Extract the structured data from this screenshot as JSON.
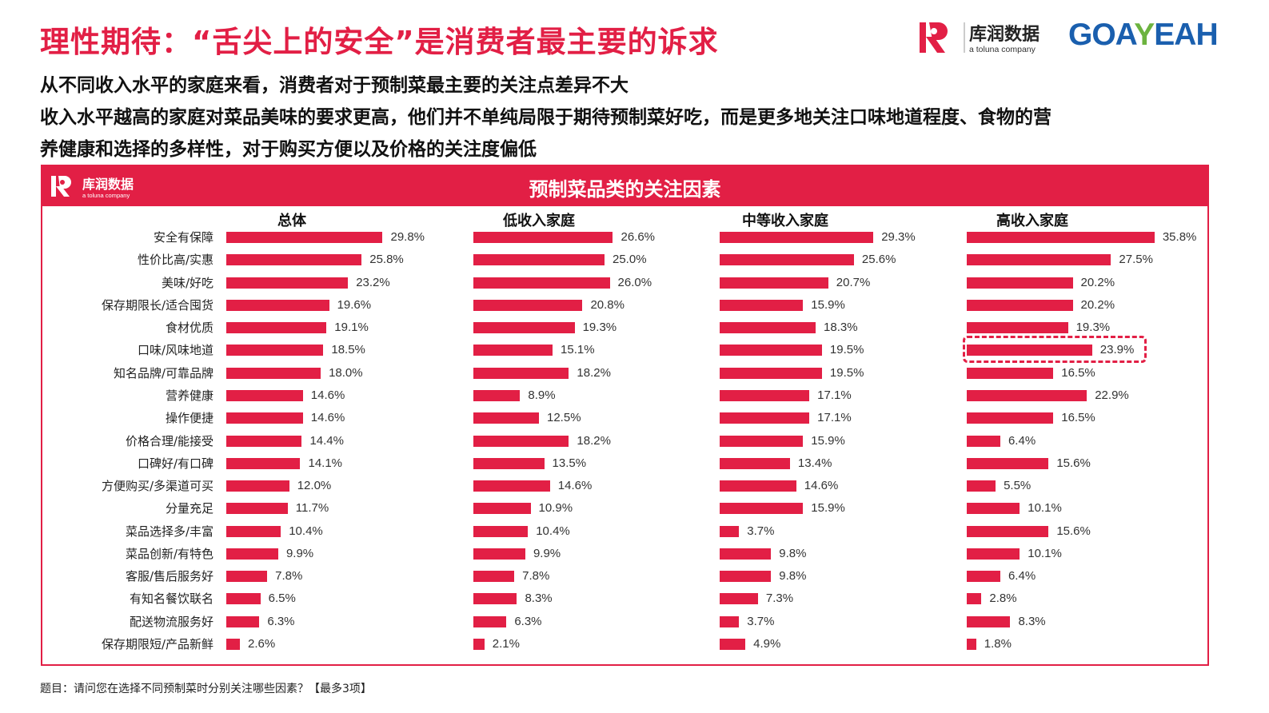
{
  "header": {
    "title": "理性期待：“舌尖上的安全”是消费者最主要的诉求",
    "subtitle_lines": [
      "从不同收入水平的家庭来看，消费者对于预制菜最主要的关注点差异不大",
      "收入水平越高的家庭对菜品美味的要求更高，他们并不单纯局限于期待预制菜好吃，而是更多地关注口味地道程度、食物的营",
      "养健康和选择的多样性，对于购买方便以及价格的关注度偏低"
    ],
    "logo_kurun": {
      "name": "库润数据",
      "tagline": "a toluna company"
    },
    "logo_goayeah": "GOAYEAH"
  },
  "colors": {
    "accent": "#e21f45",
    "text": "#111111"
  },
  "chart_data": {
    "type": "bar",
    "orientation": "horizontal",
    "title": "预制菜品类的关注因素",
    "unit": "%",
    "categories": [
      "安全有保障",
      "性价比高/实惠",
      "美味/好吃",
      "保存期限长/适合囤货",
      "食材优质",
      "口味/风味地道",
      "知名品牌/可靠品牌",
      "营养健康",
      "操作便捷",
      "价格合理/能接受",
      "口碑好/有口碑",
      "方便购买/多渠道可买",
      "分量充足",
      "菜品选择多/丰富",
      "菜品创新/有特色",
      "客服/售后服务好",
      "有知名餐饮联名",
      "配送物流服务好",
      "保存期限短/产品新鲜"
    ],
    "series": [
      {
        "name": "总体",
        "values": [
          29.8,
          25.8,
          23.2,
          19.6,
          19.1,
          18.5,
          18.0,
          14.6,
          14.6,
          14.4,
          14.1,
          12.0,
          11.7,
          10.4,
          9.9,
          7.8,
          6.5,
          6.3,
          2.6
        ]
      },
      {
        "name": "低收入家庭",
        "values": [
          26.6,
          25.0,
          26.0,
          20.8,
          19.3,
          15.1,
          18.2,
          8.9,
          12.5,
          18.2,
          13.5,
          14.6,
          10.9,
          10.4,
          9.9,
          7.8,
          8.3,
          6.3,
          2.1
        ]
      },
      {
        "name": "中等收入家庭",
        "values": [
          29.3,
          25.6,
          20.7,
          15.9,
          18.3,
          19.5,
          19.5,
          17.1,
          17.1,
          15.9,
          13.4,
          14.6,
          15.9,
          3.7,
          9.8,
          9.8,
          7.3,
          3.7,
          4.9
        ]
      },
      {
        "name": "高收入家庭",
        "values": [
          35.8,
          27.5,
          20.2,
          20.2,
          19.3,
          23.9,
          16.5,
          22.9,
          16.5,
          6.4,
          15.6,
          5.5,
          10.1,
          15.6,
          10.1,
          6.4,
          2.8,
          8.3,
          1.8
        ]
      }
    ],
    "highlight": {
      "series": "高收入家庭",
      "category": "口味/风味地道"
    }
  },
  "footer": "题目：请问您在选择不同预制菜时分别关注哪些因素？【最多3项】"
}
